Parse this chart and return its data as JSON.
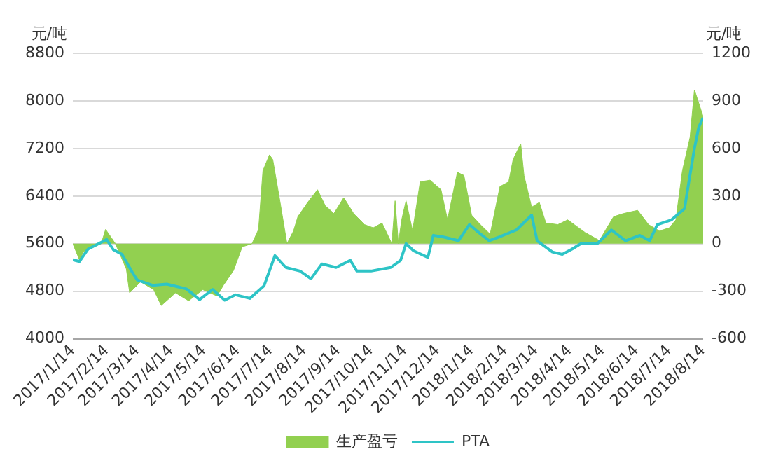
{
  "chart_data": {
    "type": "line",
    "ylabel": "元/吨",
    "y2label": "元/吨",
    "xlim": [
      "2017-01-14",
      "2018-08-14"
    ],
    "xticks": [
      {
        "value": "2017-01-14",
        "label": "2017/1/14"
      },
      {
        "value": "2017-02-14",
        "label": "2017/2/14"
      },
      {
        "value": "2017-03-14",
        "label": "2017/3/14"
      },
      {
        "value": "2017-04-14",
        "label": "2017/4/14"
      },
      {
        "value": "2017-05-14",
        "label": "2017/5/14"
      },
      {
        "value": "2017-06-14",
        "label": "2017/6/14"
      },
      {
        "value": "2017-07-14",
        "label": "2017/7/14"
      },
      {
        "value": "2017-08-14",
        "label": "2017/8/14"
      },
      {
        "value": "2017-09-14",
        "label": "2017/9/14"
      },
      {
        "value": "2017-10-14",
        "label": "2017/10/14"
      },
      {
        "value": "2017-11-14",
        "label": "2017/11/14"
      },
      {
        "value": "2017-12-14",
        "label": "2017/12/14"
      },
      {
        "value": "2018-01-14",
        "label": "2018/1/14"
      },
      {
        "value": "2018-02-14",
        "label": "2018/2/14"
      },
      {
        "value": "2018-03-14",
        "label": "2018/3/14"
      },
      {
        "value": "2018-04-14",
        "label": "2018/4/14"
      },
      {
        "value": "2018-05-14",
        "label": "2018/5/14"
      },
      {
        "value": "2018-06-14",
        "label": "2018/6/14"
      },
      {
        "value": "2018-07-14",
        "label": "2018/7/14"
      },
      {
        "value": "2018-08-14",
        "label": "2018/8/14"
      }
    ],
    "ylim": [
      4000,
      8800
    ],
    "yticks": [
      4000,
      4800,
      5600,
      6400,
      7200,
      8000,
      8800
    ],
    "y2lim": [
      -600,
      1200
    ],
    "y2ticks": [
      -600,
      -300,
      0,
      300,
      600,
      900,
      1200
    ],
    "grid": "y",
    "legend": "bottom",
    "series": [
      {
        "name": "生产盈亏",
        "type": "area",
        "axis": "y2",
        "color": "#92d050",
        "x": [
          "2017-01-14",
          "2017-01-20",
          "2017-01-24",
          "2017-02-09",
          "2017-02-13",
          "2017-02-22",
          "2017-03-04",
          "2017-03-07",
          "2017-03-17",
          "2017-03-29",
          "2017-04-05",
          "2017-04-18",
          "2017-04-30",
          "2017-05-13",
          "2017-05-26",
          "2017-06-01",
          "2017-06-10",
          "2017-06-18",
          "2017-06-27",
          "2017-07-03",
          "2017-07-07",
          "2017-07-13",
          "2017-07-16",
          "2017-07-22",
          "2017-07-29",
          "2017-08-04",
          "2017-08-08",
          "2017-08-17",
          "2017-08-26",
          "2017-09-02",
          "2017-09-10",
          "2017-09-19",
          "2017-09-28",
          "2017-10-08",
          "2017-10-16",
          "2017-10-24",
          "2017-11-02",
          "2017-11-05",
          "2017-11-08",
          "2017-11-11",
          "2017-11-15",
          "2017-11-21",
          "2017-11-28",
          "2017-12-07",
          "2017-12-17",
          "2017-12-23",
          "2018-01-01",
          "2018-01-07",
          "2018-01-14",
          "2018-01-22",
          "2018-01-31",
          "2018-02-09",
          "2018-02-17",
          "2018-02-21",
          "2018-02-28",
          "2018-03-03",
          "2018-03-10",
          "2018-03-17",
          "2018-03-23",
          "2018-04-03",
          "2018-04-12",
          "2018-04-22",
          "2018-04-28",
          "2018-05-11",
          "2018-05-24",
          "2018-06-02",
          "2018-06-15",
          "2018-06-25",
          "2018-07-05",
          "2018-07-14",
          "2018-07-20",
          "2018-07-26",
          "2018-08-02",
          "2018-08-06",
          "2018-08-14"
        ],
        "values": [
          0,
          -100,
          -50,
          0,
          90,
          0,
          -160,
          -310,
          -240,
          -290,
          -390,
          -310,
          -360,
          -290,
          -330,
          -260,
          -170,
          -20,
          0,
          90,
          460,
          560,
          530,
          290,
          0,
          80,
          170,
          260,
          340,
          240,
          190,
          290,
          190,
          120,
          100,
          130,
          0,
          270,
          0,
          150,
          270,
          80,
          390,
          400,
          340,
          150,
          450,
          430,
          180,
          120,
          60,
          360,
          390,
          530,
          630,
          430,
          230,
          260,
          130,
          120,
          150,
          100,
          70,
          20,
          170,
          190,
          210,
          120,
          80,
          100,
          150,
          460,
          670,
          970,
          800
        ]
      },
      {
        "name": "PTA",
        "type": "line",
        "axis": "y",
        "color": "#2ec4c6",
        "x": [
          "2017-01-14",
          "2017-01-20",
          "2017-01-28",
          "2017-02-14",
          "2017-02-20",
          "2017-02-28",
          "2017-03-10",
          "2017-03-14",
          "2017-03-28",
          "2017-04-10",
          "2017-04-28",
          "2017-05-10",
          "2017-05-22",
          "2017-06-02",
          "2017-06-12",
          "2017-06-25",
          "2017-07-08",
          "2017-07-18",
          "2017-07-28",
          "2017-08-10",
          "2017-08-20",
          "2017-08-30",
          "2017-09-12",
          "2017-09-25",
          "2017-10-01",
          "2017-10-14",
          "2017-11-01",
          "2017-11-10",
          "2017-11-15",
          "2017-11-22",
          "2017-12-05",
          "2017-12-10",
          "2017-12-20",
          "2018-01-02",
          "2018-01-12",
          "2018-01-21",
          "2018-01-30",
          "2018-02-08",
          "2018-02-24",
          "2018-03-10",
          "2018-03-15",
          "2018-03-29",
          "2018-04-07",
          "2018-04-16",
          "2018-04-24",
          "2018-05-09",
          "2018-05-22",
          "2018-06-04",
          "2018-06-17",
          "2018-06-26",
          "2018-07-03",
          "2018-07-16",
          "2018-07-28",
          "2018-08-01",
          "2018-08-06",
          "2018-08-10",
          "2018-08-14"
        ],
        "values": [
          5330,
          5300,
          5510,
          5670,
          5500,
          5420,
          5100,
          4990,
          4900,
          4920,
          4840,
          4660,
          4830,
          4650,
          4740,
          4680,
          4890,
          5400,
          5200,
          5140,
          5010,
          5260,
          5200,
          5320,
          5140,
          5140,
          5200,
          5320,
          5600,
          5480,
          5370,
          5740,
          5710,
          5650,
          5920,
          5780,
          5650,
          5710,
          5830,
          6080,
          5650,
          5460,
          5420,
          5510,
          5600,
          5600,
          5830,
          5650,
          5740,
          5650,
          5920,
          6000,
          6190,
          6650,
          7200,
          7560,
          7720
        ]
      }
    ]
  }
}
